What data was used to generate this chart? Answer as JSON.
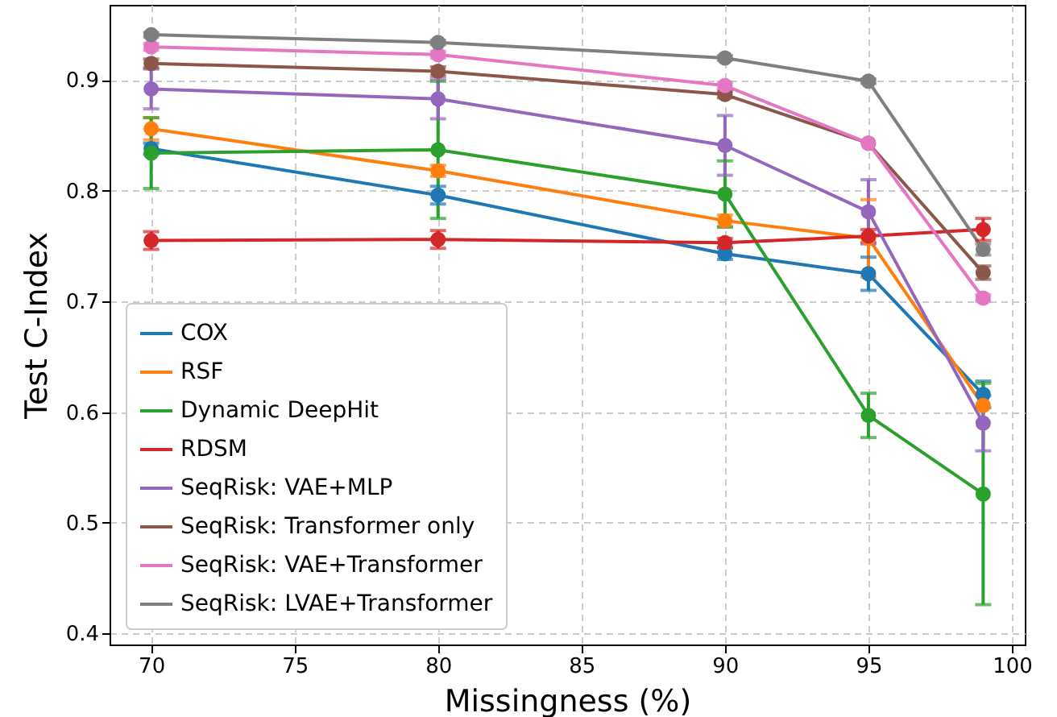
{
  "chart_data": {
    "type": "line",
    "xlabel": "Missingness (%)",
    "ylabel": "Test C-Index",
    "x": [
      70,
      80,
      90,
      95,
      99
    ],
    "xlim": [
      68.55,
      100.45
    ],
    "xticks": [
      70,
      75,
      80,
      85,
      90,
      95,
      100
    ],
    "ylim": [
      0.39,
      0.968
    ],
    "yticks": [
      0.4,
      0.5,
      0.6,
      0.7,
      0.8,
      0.9
    ],
    "grid": true,
    "legend": "bottom left",
    "marker": "circle",
    "line_style": "solid",
    "series": [
      {
        "name": "COX",
        "color": "#1f77b4",
        "values": [
          0.838,
          0.796,
          0.743,
          0.725,
          0.616
        ],
        "errors": [
          0.005,
          0.008,
          0.005,
          0.015,
          0.012
        ]
      },
      {
        "name": "RSF",
        "color": "#ff7f0e",
        "values": [
          0.856,
          0.818,
          0.773,
          0.757,
          0.606
        ],
        "errors": [
          0.01,
          0.005,
          0.005,
          0.035,
          null
        ]
      },
      {
        "name": "Dynamic DeepHit",
        "color": "#2ca02c",
        "values": [
          0.834,
          0.837,
          0.797,
          0.597,
          0.526
        ],
        "errors": [
          0.032,
          0.062,
          0.03,
          0.02,
          0.1
        ]
      },
      {
        "name": "RDSM",
        "color": "#d62728",
        "values": [
          0.755,
          0.756,
          0.753,
          0.759,
          0.765
        ],
        "errors": [
          0.008,
          0.008,
          0.004,
          0.006,
          0.01
        ]
      },
      {
        "name": "SeqRisk: VAE+MLP",
        "color": "#9467bd",
        "values": [
          0.892,
          0.883,
          0.841,
          0.781,
          0.59
        ],
        "errors": [
          0.018,
          0.018,
          0.027,
          0.029,
          0.025
        ]
      },
      {
        "name": "SeqRisk: Transformer only",
        "color": "#8c564b",
        "values": [
          0.915,
          0.908,
          0.887,
          0.843,
          0.726
        ],
        "errors": [
          0.004,
          0.004,
          0.003,
          null,
          0.006
        ]
      },
      {
        "name": "SeqRisk: VAE+Transformer",
        "color": "#e377c2",
        "values": [
          0.93,
          0.923,
          0.895,
          0.843,
          0.703
        ],
        "errors": [
          0.003,
          0.003,
          0.003,
          null,
          0.003
        ]
      },
      {
        "name": "SeqRisk: LVAE+Transformer",
        "color": "#7f7f7f",
        "values": [
          0.941,
          0.934,
          0.92,
          0.899,
          0.747
        ],
        "errors": [
          0.002,
          0.002,
          0.002,
          0.002,
          0.005
        ]
      }
    ]
  }
}
